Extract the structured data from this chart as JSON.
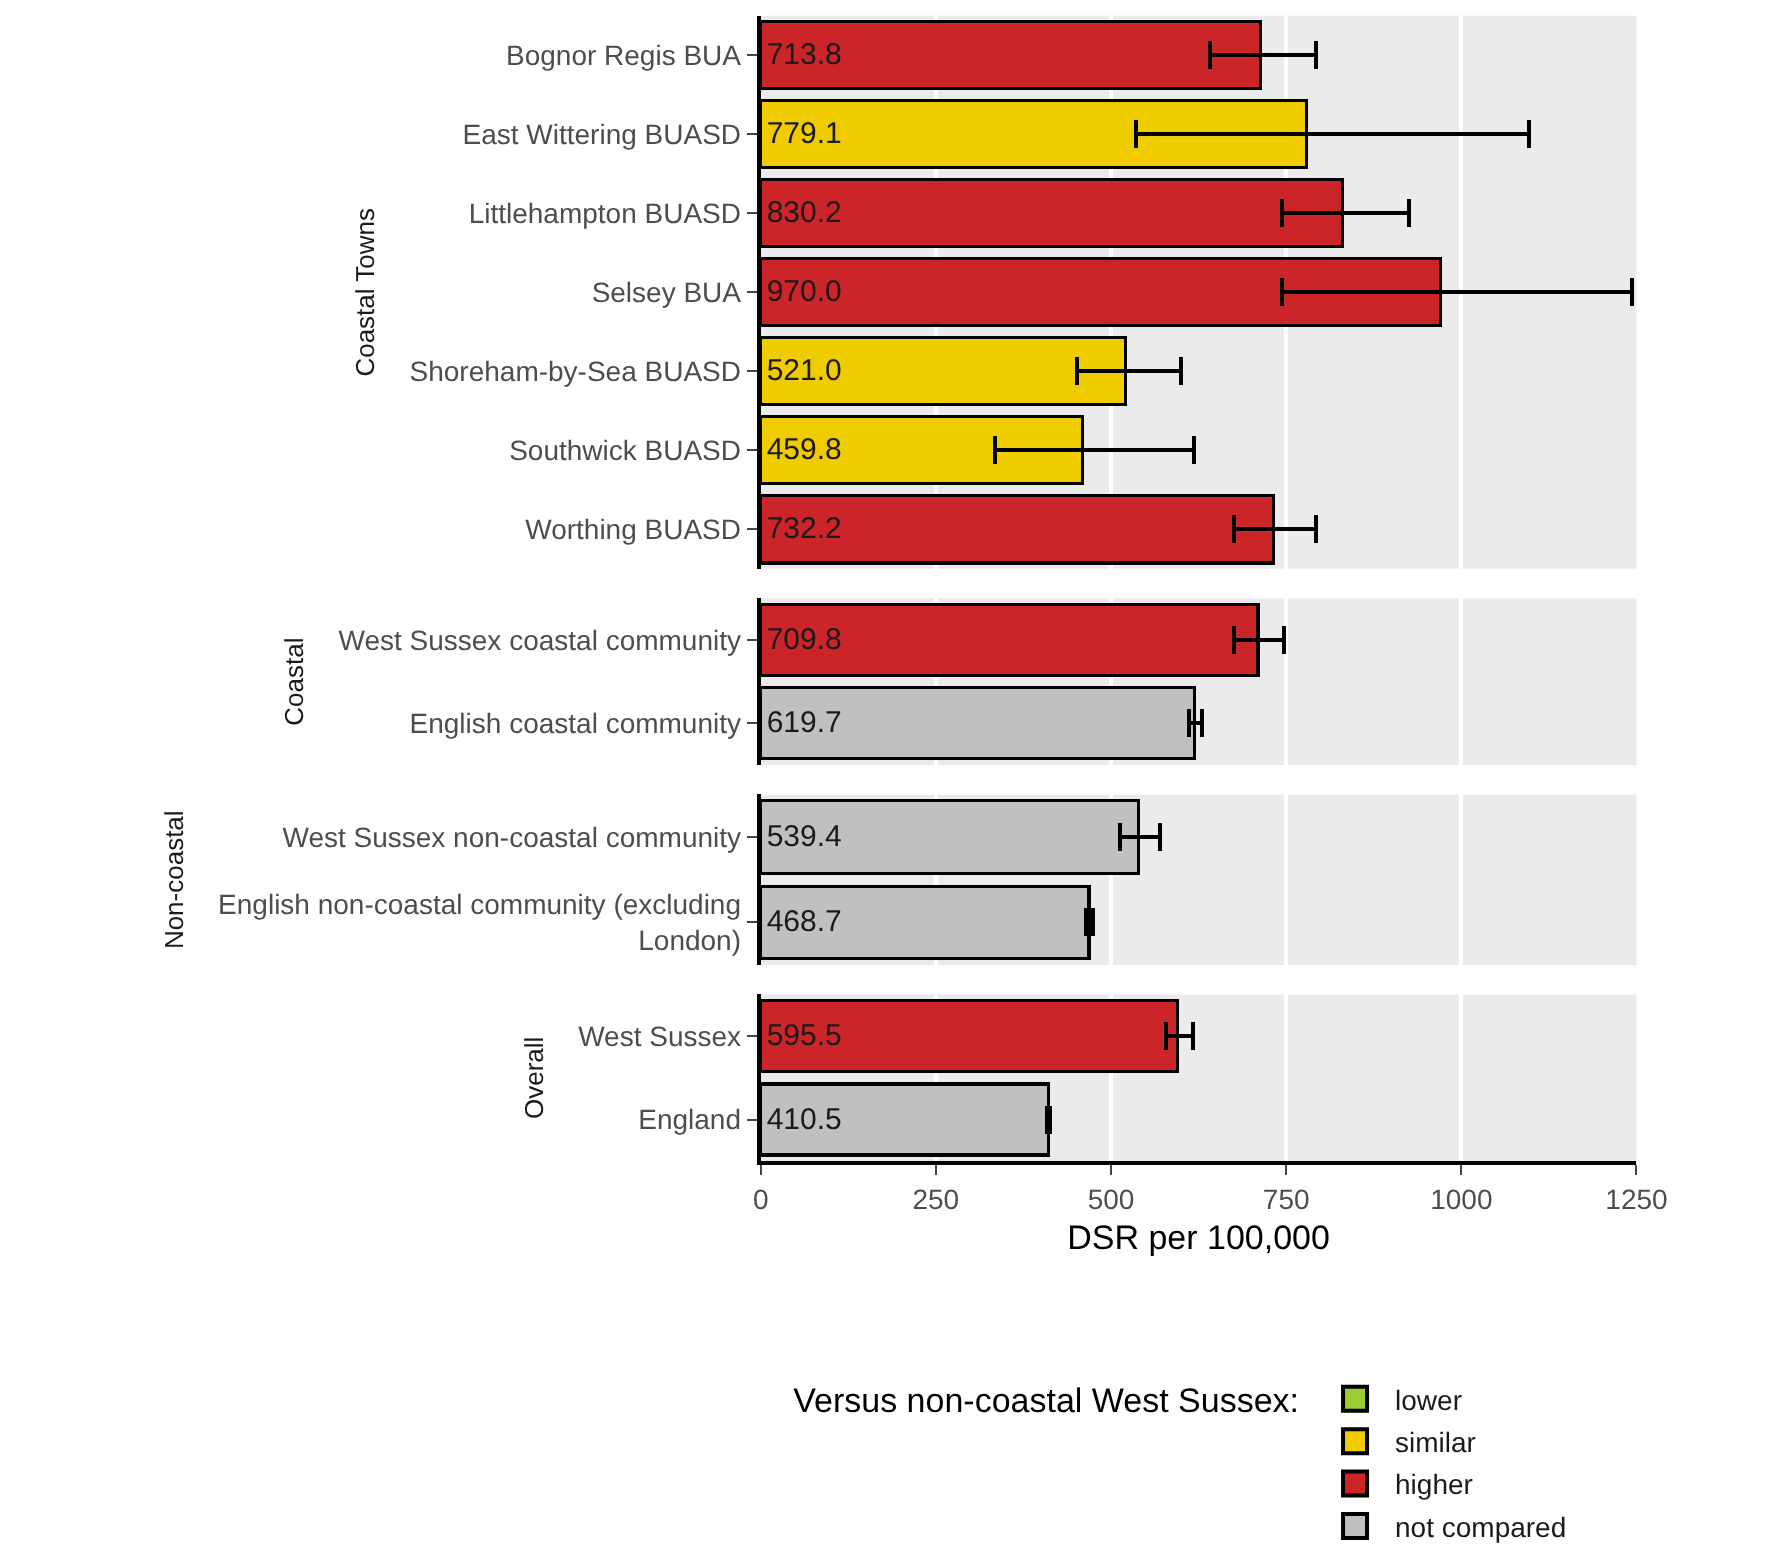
{
  "chart_data": [
    {
      "type": "bar",
      "orientation": "horizontal",
      "stacked": true,
      "ylabel": "Coastal Towns",
      "categories": [
        "Bognor Regis BUA",
        "East Wittering BUASD",
        "Littlehampton BUASD",
        "Selsey BUA",
        "Shoreham-by-Sea BUASD",
        "Southwick BUASD",
        "Worthing BUASD"
      ],
      "xlim": [
        0,
        1250
      ],
      "xticks": [
        0,
        250,
        500,
        750,
        1000,
        1250
      ],
      "grid": "x",
      "tick_labels": "y",
      "series": [
        {
          "color": "#eecc00",
          "values": [
            null,
            779.1,
            null,
            null,
            521.0,
            459.8,
            null
          ],
          "value_labels": [
            null,
            "779.1",
            null,
            null,
            "521.0",
            "459.8",
            null
          ],
          "errors": [
            null,
            [
              535,
              1097
            ],
            null,
            null,
            [
              451,
              600
            ],
            [
              335,
              619
            ],
            null
          ]
        },
        {
          "color": "#cc2529",
          "values": [
            713.8,
            null,
            830.2,
            970.0,
            null,
            null,
            732.2
          ],
          "value_labels": [
            "713.8",
            null,
            "830.2",
            "970.0",
            null,
            null,
            "732.2"
          ],
          "errors": [
            [
              642,
              793
            ],
            null,
            [
              744,
              925
            ],
            [
              744,
              1243
            ],
            null,
            null,
            [
              676,
              793
            ]
          ]
        }
      ]
    },
    {
      "type": "bar",
      "orientation": "horizontal",
      "stacked": true,
      "ylabel": "Coastal",
      "categories": [
        "West Sussex coastal community",
        "English coastal community"
      ],
      "xlim": [
        0,
        1250
      ],
      "xticks": [
        0,
        250,
        500,
        750,
        1000,
        1250
      ],
      "grid": "x",
      "tick_labels": "y",
      "series": [
        {
          "color": "#cc2529",
          "values": [
            709.8,
            null
          ],
          "value_labels": [
            "709.8",
            null
          ],
          "errors": [
            [
              676,
              747
            ],
            null
          ]
        },
        {
          "color": "#c0c0c0",
          "values": [
            null,
            619.7
          ],
          "value_labels": [
            null,
            "619.7"
          ],
          "errors": [
            null,
            [
              611,
              630
            ]
          ]
        }
      ]
    },
    {
      "type": "bar",
      "orientation": "horizontal",
      "ylabel": "Non-coastal",
      "categories": [
        "West Sussex non-coastal community",
        "English non-coastal community (excluding London)"
      ],
      "xlim": [
        0,
        1250
      ],
      "xticks": [
        0,
        250,
        500,
        750,
        1000,
        1250
      ],
      "grid": "x",
      "tick_labels": "y",
      "series": [
        {
          "color": "#c0c0c0",
          "values": [
            539.4,
            468.7
          ],
          "value_labels": [
            "539.4",
            "468.7"
          ],
          "errors": [
            [
              513,
              570
            ],
            [
              465,
              474
            ]
          ]
        }
      ]
    },
    {
      "type": "bar",
      "orientation": "horizontal",
      "stacked": true,
      "ylabel": "Overall",
      "categories": [
        "West Sussex",
        "England"
      ],
      "xlim": [
        0,
        1250
      ],
      "xticks": [
        0,
        250,
        500,
        750,
        1000,
        1250
      ],
      "grid": "x",
      "legend": "bottom",
      "legend_title": "Versus non-coastal West Sussex:",
      "xlabel": "DSR per 100,000",
      "series": [
        {
          "name": "lower",
          "color": "#9acd32",
          "values": [
            null,
            null
          ]
        },
        {
          "name": "similar",
          "color": "#eecc00",
          "values": [
            null,
            null
          ]
        },
        {
          "name": "higher",
          "color": "#cc2529",
          "values": [
            595.5,
            null
          ],
          "value_labels": [
            "595.5",
            null
          ],
          "errors": [
            [
              578,
              617
            ],
            null
          ]
        },
        {
          "name": "not compared",
          "color": "#c0c0c0",
          "values": [
            null,
            410.5
          ],
          "value_labels": [
            null,
            "410.5"
          ],
          "errors": [
            null,
            [
              408,
              413
            ]
          ]
        }
      ]
    }
  ]
}
